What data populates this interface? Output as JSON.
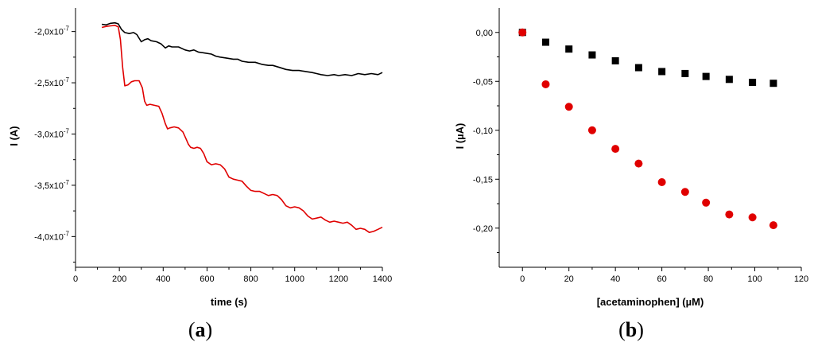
{
  "chart_data": [
    {
      "type": "line",
      "panel_label": "a",
      "xlabel": "time (s)",
      "ylabel": "I (A)",
      "xlim": [
        0,
        1400
      ],
      "ylim": [
        -4.3e-07,
        -1.77e-07
      ],
      "x_ticks": [
        0,
        200,
        400,
        600,
        800,
        1000,
        1200,
        1400
      ],
      "x_tick_labels": [
        "0",
        "200",
        "400",
        "600",
        "800",
        "1000",
        "1200",
        "1400"
      ],
      "y_ticks": [
        -2e-07,
        -2.5e-07,
        -3e-07,
        -3.5e-07,
        -4e-07
      ],
      "y_tick_labels": [
        {
          "mantissa": "-2,0x10",
          "exp": "-7"
        },
        {
          "mantissa": "-2,5x10",
          "exp": "-7"
        },
        {
          "mantissa": "-3,0x10",
          "exp": "-7"
        },
        {
          "mantissa": "-3,5x10",
          "exp": "-7"
        },
        {
          "mantissa": "-4,0x10",
          "exp": "-7"
        }
      ],
      "series": [
        {
          "color": "#000000",
          "x": [
            120,
            140,
            160,
            180,
            195,
            210,
            225,
            245,
            265,
            280,
            300,
            315,
            330,
            345,
            370,
            390,
            410,
            425,
            440,
            470,
            500,
            520,
            540,
            560,
            590,
            620,
            640,
            660,
            690,
            720,
            740,
            760,
            790,
            820,
            850,
            880,
            900,
            930,
            960,
            990,
            1020,
            1050,
            1080,
            1100,
            1120,
            1150,
            1180,
            1200,
            1230,
            1260,
            1290,
            1320,
            1350,
            1380,
            1400
          ],
          "y": [
            -1.93e-07,
            -1.935e-07,
            -1.92e-07,
            -1.915e-07,
            -1.925e-07,
            -1.98e-07,
            -2.01e-07,
            -2.02e-07,
            -2.01e-07,
            -2.03e-07,
            -2.1e-07,
            -2.08e-07,
            -2.07e-07,
            -2.09e-07,
            -2.1e-07,
            -2.12e-07,
            -2.16e-07,
            -2.14e-07,
            -2.15e-07,
            -2.15e-07,
            -2.18e-07,
            -2.19e-07,
            -2.18e-07,
            -2.2e-07,
            -2.21e-07,
            -2.22e-07,
            -2.24e-07,
            -2.25e-07,
            -2.26e-07,
            -2.27e-07,
            -2.27e-07,
            -2.29e-07,
            -2.3e-07,
            -2.3e-07,
            -2.32e-07,
            -2.33e-07,
            -2.33e-07,
            -2.35e-07,
            -2.37e-07,
            -2.38e-07,
            -2.38e-07,
            -2.39e-07,
            -2.4e-07,
            -2.41e-07,
            -2.42e-07,
            -2.43e-07,
            -2.42e-07,
            -2.43e-07,
            -2.42e-07,
            -2.43e-07,
            -2.41e-07,
            -2.42e-07,
            -2.41e-07,
            -2.42e-07,
            -2.4e-07
          ]
        },
        {
          "color": "#e00000",
          "x": [
            120,
            140,
            160,
            180,
            195,
            205,
            215,
            225,
            240,
            255,
            270,
            290,
            305,
            315,
            325,
            340,
            360,
            380,
            395,
            410,
            420,
            430,
            450,
            470,
            490,
            505,
            515,
            525,
            540,
            555,
            570,
            585,
            600,
            620,
            640,
            660,
            680,
            700,
            720,
            740,
            760,
            780,
            800,
            820,
            840,
            860,
            880,
            900,
            920,
            940,
            960,
            980,
            1000,
            1020,
            1040,
            1060,
            1080,
            1100,
            1120,
            1140,
            1160,
            1180,
            1200,
            1220,
            1240,
            1260,
            1280,
            1300,
            1320,
            1340,
            1360,
            1380,
            1400
          ],
          "y": [
            -1.96e-07,
            -1.95e-07,
            -1.945e-07,
            -1.94e-07,
            -1.955e-07,
            -2.08e-07,
            -2.35e-07,
            -2.53e-07,
            -2.52e-07,
            -2.49e-07,
            -2.48e-07,
            -2.48e-07,
            -2.55e-07,
            -2.68e-07,
            -2.72e-07,
            -2.71e-07,
            -2.72e-07,
            -2.73e-07,
            -2.8e-07,
            -2.9e-07,
            -2.95e-07,
            -2.94e-07,
            -2.93e-07,
            -2.94e-07,
            -2.98e-07,
            -3.05e-07,
            -3.1e-07,
            -3.13e-07,
            -3.14e-07,
            -3.13e-07,
            -3.14e-07,
            -3.19e-07,
            -3.27e-07,
            -3.3e-07,
            -3.29e-07,
            -3.3e-07,
            -3.34e-07,
            -3.42e-07,
            -3.44e-07,
            -3.45e-07,
            -3.46e-07,
            -3.51e-07,
            -3.55e-07,
            -3.56e-07,
            -3.56e-07,
            -3.58e-07,
            -3.6e-07,
            -3.59e-07,
            -3.6e-07,
            -3.64e-07,
            -3.7e-07,
            -3.72e-07,
            -3.71e-07,
            -3.72e-07,
            -3.75e-07,
            -3.8e-07,
            -3.83e-07,
            -3.82e-07,
            -3.81e-07,
            -3.84e-07,
            -3.86e-07,
            -3.85e-07,
            -3.86e-07,
            -3.87e-07,
            -3.86e-07,
            -3.89e-07,
            -3.93e-07,
            -3.92e-07,
            -3.93e-07,
            -3.96e-07,
            -3.95e-07,
            -3.93e-07,
            -3.91e-07
          ]
        }
      ]
    },
    {
      "type": "scatter",
      "panel_label": "b",
      "xlabel": "[acetaminophen] (µM)",
      "ylabel": "I (µA)",
      "xlim": [
        -10,
        120
      ],
      "ylim": [
        -0.24,
        0.025
      ],
      "x_ticks": [
        0,
        20,
        40,
        60,
        80,
        100,
        120
      ],
      "x_tick_labels": [
        "0",
        "20",
        "40",
        "60",
        "80",
        "100",
        "120"
      ],
      "y_ticks": [
        0.0,
        -0.05,
        -0.1,
        -0.15,
        -0.2
      ],
      "y_tick_labels": [
        "0,00",
        "-0,05",
        "-0,10",
        "-0,15",
        "-0,20"
      ],
      "series": [
        {
          "color": "#000000",
          "marker": "square",
          "x": [
            0,
            10,
            20,
            30,
            40,
            50,
            60,
            70,
            79,
            89,
            99,
            108
          ],
          "y": [
            0.0,
            -0.01,
            -0.017,
            -0.023,
            -0.029,
            -0.036,
            -0.04,
            -0.042,
            -0.045,
            -0.048,
            -0.051,
            -0.052
          ]
        },
        {
          "color": "#e00000",
          "marker": "circle",
          "x": [
            0,
            10,
            20,
            30,
            40,
            50,
            60,
            70,
            79,
            89,
            99,
            108
          ],
          "y": [
            0.0,
            -0.053,
            -0.076,
            -0.1,
            -0.119,
            -0.134,
            -0.153,
            -0.163,
            -0.174,
            -0.186,
            -0.189,
            -0.197
          ]
        }
      ]
    }
  ]
}
